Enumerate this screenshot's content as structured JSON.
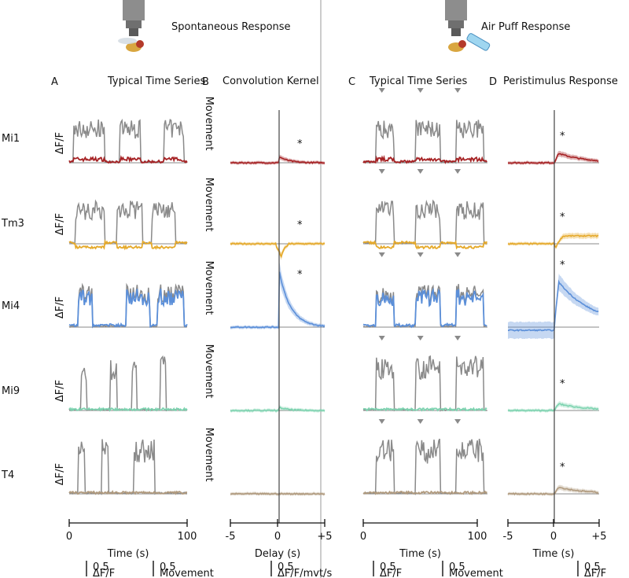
{
  "header": {
    "left": "Spontaneous Response",
    "right": "Air Puff Response"
  },
  "panels": [
    {
      "letter": "A",
      "title": "Typical Time Series"
    },
    {
      "letter": "B",
      "title": "Convolution Kernel"
    },
    {
      "letter": "C",
      "title": "Typical Time Series"
    },
    {
      "letter": "D",
      "title": "Peristimulus Response"
    }
  ],
  "rows": [
    {
      "label": "Mi1",
      "signal": "ΔF/F",
      "movement": "Movement"
    },
    {
      "label": "Tm3",
      "signal": "ΔF/F",
      "movement": "Movement"
    },
    {
      "label": "Mi4",
      "signal": "ΔF/F",
      "movement": "Movement"
    },
    {
      "label": "Mi9",
      "signal": "ΔF/F",
      "movement": "Movement"
    },
    {
      "label": "T4",
      "signal": "ΔF/F",
      "movement": "Movement"
    }
  ],
  "significance": {
    "symbol": "*",
    "kernel_rows": [
      "Mi1",
      "Tm3",
      "Mi4"
    ],
    "peristimulus_rows": [
      "Mi1",
      "Tm3",
      "Mi4",
      "Mi9",
      "T4"
    ]
  },
  "axes": [
    {
      "ticks": [
        "0",
        "100"
      ],
      "label": "Time (s)"
    },
    {
      "ticks": [
        "-5",
        "0",
        "+5"
      ],
      "label": "Delay (s)"
    },
    {
      "ticks": [
        "0",
        "100"
      ],
      "label": "Time (s)"
    },
    {
      "ticks": [
        "-5",
        "0",
        "+5"
      ],
      "label": "Time (s)"
    }
  ],
  "scale_bars": [
    {
      "value": "0.5",
      "unit": "ΔF/F"
    },
    {
      "value": "0.5",
      "unit": "Movement"
    },
    {
      "value": "0.5",
      "unit": "ΔF/F/mvt/s"
    },
    {
      "value": "0.5",
      "unit": "ΔF/F"
    },
    {
      "value": "0.5",
      "unit": "Movement"
    },
    {
      "value": "0.5",
      "unit": "ΔF/F"
    }
  ]
}
